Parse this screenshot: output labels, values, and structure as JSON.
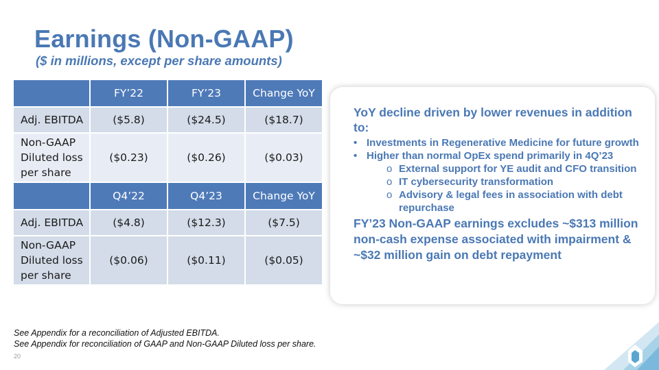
{
  "header": {
    "title": "Earnings (Non-GAAP)",
    "subtitle": "($ in millions, except per share amounts)"
  },
  "table": {
    "annual_header": [
      "FY’22",
      "FY’23",
      "Change YoY"
    ],
    "quarter_header": [
      "Q4’22",
      "Q4’23",
      "Change YoY"
    ],
    "annual_rows": [
      {
        "label": "Adj. EBITDA",
        "values": [
          "($5.8)",
          "($24.5)",
          "($18.7)"
        ]
      },
      {
        "label_lines": [
          "Non-GAAP",
          "Diluted loss",
          "per share"
        ],
        "values": [
          "($0.23)",
          "($0.26)",
          "($0.03)"
        ]
      }
    ],
    "quarter_rows": [
      {
        "label": "Adj. EBITDA",
        "values": [
          "($4.8)",
          "($12.3)",
          "($7.5)"
        ]
      },
      {
        "label_lines": [
          "Non-GAAP",
          "Diluted loss",
          "per share"
        ],
        "values": [
          "($0.06)",
          "($0.11)",
          "($0.05)"
        ]
      }
    ]
  },
  "callout": {
    "lead": "YoY decline driven by lower revenues in addition to:",
    "bullets": [
      "Investments in Regenerative Medicine for future growth",
      "Higher than normal OpEx spend primarily in 4Q’23"
    ],
    "sub_bullets": [
      "External support for YE audit and CFO transition",
      "IT cybersecurity transformation",
      "Advisory & legal fees in association with debt repurchase"
    ],
    "conclusion": "FY’23 Non-GAAP earnings excludes ~$313 million non-cash expense associated with impairment & ~$32 million gain on debt repayment"
  },
  "footnotes": [
    "See Appendix for a reconciliation of Adjusted EBITDA.",
    "See Appendix for reconciliation of GAAP and Non-GAAP Diluted loss per share."
  ],
  "page_number": "20",
  "colors": {
    "brand_blue": "#4a78b4",
    "header_fill": "#4e7ab8",
    "cell_fill": "#d3dce8",
    "cell_fill_light": "#e8edf5"
  },
  "logo_icon": "3d-systems-logo-icon"
}
